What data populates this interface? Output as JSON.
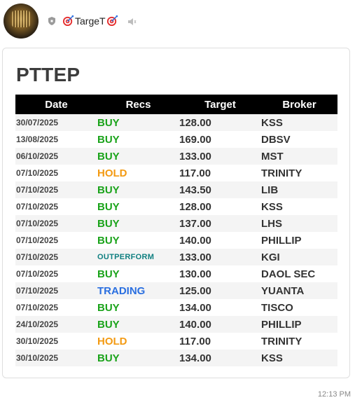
{
  "channel": {
    "name": "TargeT",
    "avatar_icon": "gold-chart-avatar-icon",
    "badge_icon": "shield-icon",
    "decor_icon": "target-icon",
    "mute_icon": "speaker-muted-icon"
  },
  "card": {
    "title": "PTTEP",
    "headers": {
      "date": "Date",
      "recs": "Recs",
      "target": "Target",
      "broker": "Broker"
    },
    "rows": [
      {
        "date": "30/07/2025",
        "rec": "BUY",
        "target": "128.00",
        "broker": "KSS"
      },
      {
        "date": "13/08/2025",
        "rec": "BUY",
        "target": "169.00",
        "broker": "DBSV"
      },
      {
        "date": "06/10/2025",
        "rec": "BUY",
        "target": "133.00",
        "broker": "MST"
      },
      {
        "date": "07/10/2025",
        "rec": "HOLD",
        "target": "117.00",
        "broker": "TRINITY"
      },
      {
        "date": "07/10/2025",
        "rec": "BUY",
        "target": "143.50",
        "broker": "LIB"
      },
      {
        "date": "07/10/2025",
        "rec": "BUY",
        "target": "128.00",
        "broker": "KSS"
      },
      {
        "date": "07/10/2025",
        "rec": "BUY",
        "target": "137.00",
        "broker": "LHS"
      },
      {
        "date": "07/10/2025",
        "rec": "BUY",
        "target": "140.00",
        "broker": "PHILLIP"
      },
      {
        "date": "07/10/2025",
        "rec": "OUTPERFORM",
        "target": "133.00",
        "broker": "KGI"
      },
      {
        "date": "07/10/2025",
        "rec": "BUY",
        "target": "130.00",
        "broker": "DAOL SEC"
      },
      {
        "date": "07/10/2025",
        "rec": "TRADING",
        "target": "125.00",
        "broker": "YUANTA"
      },
      {
        "date": "07/10/2025",
        "rec": "BUY",
        "target": "134.00",
        "broker": "TISCO"
      },
      {
        "date": "24/10/2025",
        "rec": "BUY",
        "target": "140.00",
        "broker": "PHILLIP"
      },
      {
        "date": "30/10/2025",
        "rec": "HOLD",
        "target": "117.00",
        "broker": "TRINITY"
      },
      {
        "date": "30/10/2025",
        "rec": "BUY",
        "target": "134.00",
        "broker": "KSS"
      }
    ]
  },
  "rec_colors": {
    "BUY": "#1aa31a",
    "HOLD": "#f39a12",
    "OUTPERFORM": "#0f7f80",
    "TRADING": "#2a6fe0"
  },
  "timestamp": "12:13 PM"
}
